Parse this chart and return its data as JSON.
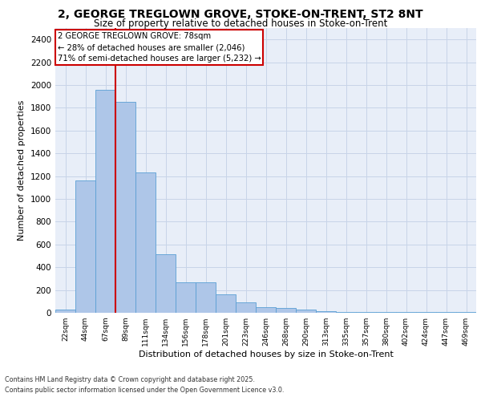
{
  "title_line1": "2, GEORGE TREGLOWN GROVE, STOKE-ON-TRENT, ST2 8NT",
  "title_line2": "Size of property relative to detached houses in Stoke-on-Trent",
  "xlabel": "Distribution of detached houses by size in Stoke-on-Trent",
  "ylabel": "Number of detached properties",
  "categories": [
    "22sqm",
    "44sqm",
    "67sqm",
    "89sqm",
    "111sqm",
    "134sqm",
    "156sqm",
    "178sqm",
    "201sqm",
    "223sqm",
    "246sqm",
    "268sqm",
    "290sqm",
    "313sqm",
    "335sqm",
    "357sqm",
    "380sqm",
    "402sqm",
    "424sqm",
    "447sqm",
    "469sqm"
  ],
  "values": [
    25,
    1160,
    1960,
    1850,
    1230,
    515,
    270,
    270,
    160,
    90,
    50,
    40,
    25,
    15,
    5,
    5,
    5,
    5,
    5,
    5,
    5
  ],
  "bar_color": "#aec6e8",
  "bar_edge_color": "#5a9fd4",
  "bg_color": "#e8eef8",
  "grid_color": "#c8d4e8",
  "annotation_text": "2 GEORGE TREGLOWN GROVE: 78sqm\n← 28% of detached houses are smaller (2,046)\n71% of semi-detached houses are larger (5,232) →",
  "vline_x_index": 2.5,
  "annotation_box_color": "#ffffff",
  "annotation_box_edge": "#cc0000",
  "vline_color": "#cc0000",
  "footer_line1": "Contains HM Land Registry data © Crown copyright and database right 2025.",
  "footer_line2": "Contains public sector information licensed under the Open Government Licence v3.0.",
  "ylim": [
    0,
    2500
  ],
  "yticks": [
    0,
    200,
    400,
    600,
    800,
    1000,
    1200,
    1400,
    1600,
    1800,
    2000,
    2200,
    2400
  ]
}
